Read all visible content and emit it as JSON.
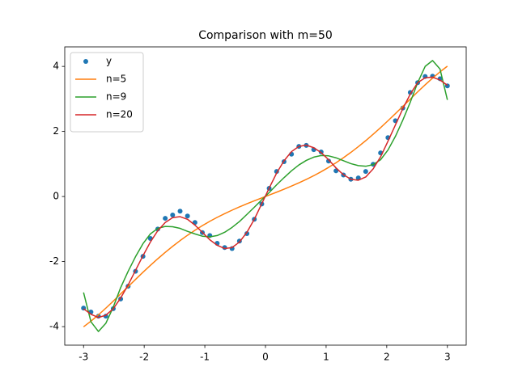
{
  "chart_data": {
    "type": "line",
    "title": "Comparison with m=50",
    "x": [
      -3,
      -2.878,
      -2.755,
      -2.633,
      -2.51,
      -2.388,
      -2.265,
      -2.143,
      -2.02,
      -1.898,
      -1.776,
      -1.653,
      -1.531,
      -1.408,
      -1.286,
      -1.163,
      -1.041,
      -0.918,
      -0.796,
      -0.673,
      -0.551,
      -0.429,
      -0.306,
      -0.184,
      -0.061,
      0.061,
      0.184,
      0.306,
      0.429,
      0.551,
      0.673,
      0.796,
      0.918,
      1.041,
      1.163,
      1.286,
      1.408,
      1.531,
      1.653,
      1.776,
      1.898,
      2.02,
      2.143,
      2.265,
      2.388,
      2.51,
      2.633,
      2.755,
      2.878,
      3
    ],
    "series": [
      {
        "name": "y",
        "color": "#1f77b4",
        "mode": "markers",
        "values": [
          -3.43,
          -3.55,
          -3.68,
          -3.68,
          -3.45,
          -3.15,
          -2.76,
          -2.3,
          -1.84,
          -1.29,
          -1.0,
          -0.67,
          -0.57,
          -0.45,
          -0.6,
          -0.8,
          -1.11,
          -1.2,
          -1.44,
          -1.57,
          -1.6,
          -1.37,
          -1.14,
          -0.7,
          -0.23,
          0.25,
          0.77,
          1.07,
          1.3,
          1.54,
          1.57,
          1.44,
          1.37,
          1.09,
          0.79,
          0.66,
          0.53,
          0.57,
          0.77,
          0.99,
          1.34,
          1.81,
          2.33,
          2.72,
          3.2,
          3.5,
          3.69,
          3.7,
          3.62,
          3.4
        ]
      },
      {
        "name": "n=5",
        "color": "#ff7f0e",
        "mode": "line",
        "values": [
          -4.007,
          -3.832,
          -3.638,
          -3.433,
          -3.217,
          -2.994,
          -2.771,
          -2.549,
          -2.329,
          -2.118,
          -1.914,
          -1.717,
          -1.532,
          -1.356,
          -1.192,
          -1.037,
          -0.896,
          -0.762,
          -0.64,
          -0.526,
          -0.42,
          -0.32,
          -0.224,
          -0.133,
          -0.044,
          0.044,
          0.133,
          0.224,
          0.32,
          0.42,
          0.526,
          0.64,
          0.762,
          0.896,
          1.037,
          1.192,
          1.356,
          1.532,
          1.717,
          1.914,
          2.118,
          2.329,
          2.549,
          2.771,
          2.994,
          3.217,
          3.433,
          3.638,
          3.832,
          4.007
        ]
      },
      {
        "name": "n=9",
        "color": "#2ca02c",
        "mode": "line",
        "values": [
          -2.95,
          -3.85,
          -4.15,
          -3.9,
          -3.4,
          -2.8,
          -2.3,
          -1.85,
          -1.45,
          -1.15,
          -0.98,
          -0.92,
          -0.93,
          -0.98,
          -1.07,
          -1.15,
          -1.22,
          -1.24,
          -1.2,
          -1.1,
          -0.95,
          -0.77,
          -0.55,
          -0.33,
          -0.1,
          0.12,
          0.36,
          0.58,
          0.79,
          0.97,
          1.11,
          1.21,
          1.26,
          1.25,
          1.19,
          1.1,
          1.01,
          0.95,
          0.93,
          0.98,
          1.13,
          1.43,
          1.85,
          2.35,
          2.9,
          3.5,
          4.0,
          4.18,
          3.92,
          2.97
        ]
      },
      {
        "name": "n=20",
        "color": "#d62728",
        "mode": "line",
        "values": [
          -3.45,
          -3.62,
          -3.72,
          -3.65,
          -3.45,
          -3.12,
          -2.72,
          -2.27,
          -1.82,
          -1.4,
          -1.05,
          -0.8,
          -0.65,
          -0.62,
          -0.7,
          -0.88,
          -1.1,
          -1.33,
          -1.5,
          -1.6,
          -1.57,
          -1.4,
          -1.1,
          -0.7,
          -0.22,
          0.26,
          0.72,
          1.1,
          1.38,
          1.54,
          1.58,
          1.5,
          1.35,
          1.13,
          0.88,
          0.67,
          0.53,
          0.5,
          0.6,
          0.85,
          1.22,
          1.7,
          2.2,
          2.7,
          3.15,
          3.5,
          3.65,
          3.67,
          3.58,
          3.42
        ]
      }
    ],
    "xlim": [
      -3.31,
      3.31
    ],
    "ylim": [
      -4.57,
      4.6
    ],
    "xticks": [
      -3,
      -2,
      -1,
      0,
      1,
      2,
      3
    ],
    "yticks": [
      -4,
      -2,
      0,
      2,
      4
    ],
    "grid": false,
    "legend": "upper left"
  }
}
